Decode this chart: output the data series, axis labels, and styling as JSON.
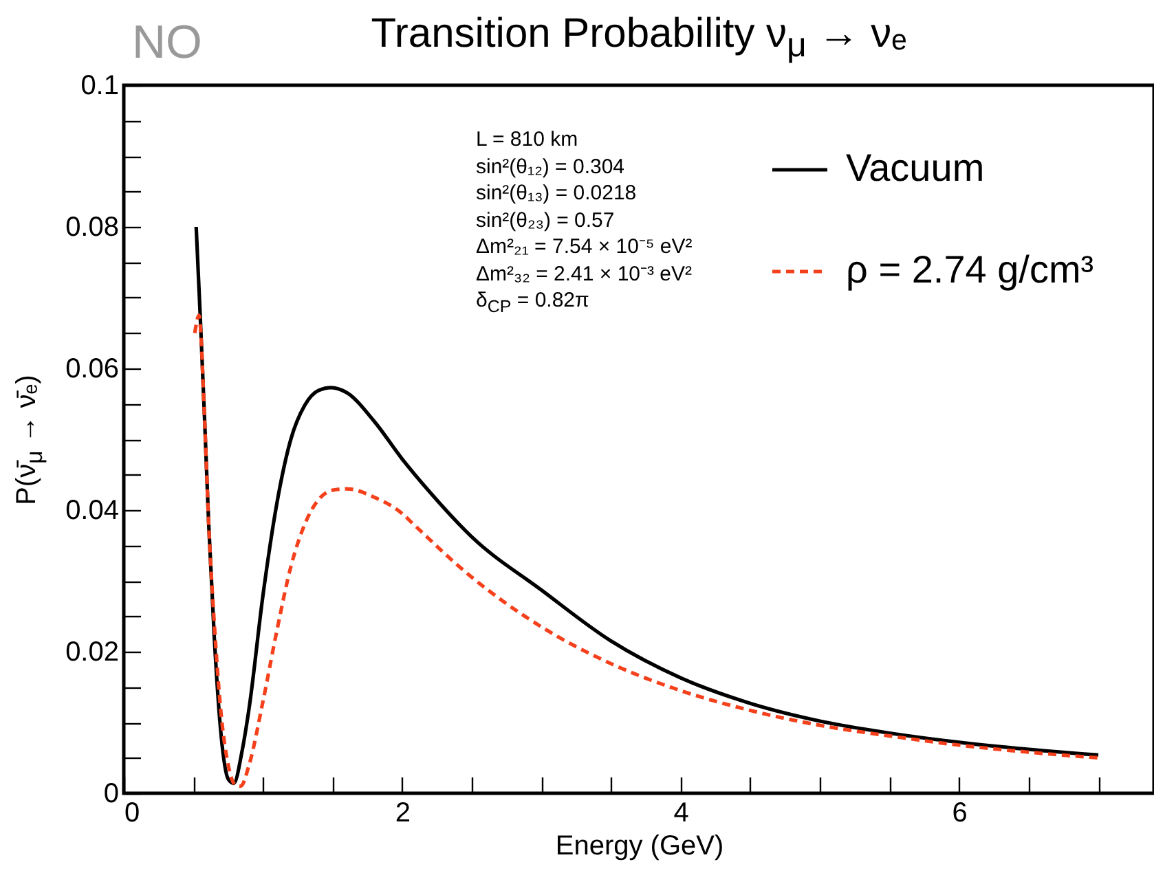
{
  "chart_data": {
    "type": "line",
    "title": "Transition Probability ν$_{μ}$ → νₑ",
    "xlabel": "Energy (GeV)",
    "ylabel": "P(ν̄$_{μ}$ → ν̄ₑ)",
    "annotations": [
      "NO",
      "L = 810 km",
      "sin²(θ₁₂) = 0.304",
      "sin²(θ₁₃) = 0.0218",
      "sin²(θ₂₃) = 0.57",
      "Δm²₂₁ = 7.54 × 10⁻⁵ eV²",
      "Δm²₃₂ = 2.41 × 10⁻³ eV²",
      "δ$_{CP}$ = 0.82π"
    ],
    "xlim": [
      0,
      7.4
    ],
    "ylim": [
      0,
      0.1
    ],
    "xticks": [
      0,
      {
        "value": 0.5,
        "label": null
      },
      {
        "value": 1,
        "label": null
      },
      {
        "value": 1.5,
        "label": null
      },
      2,
      {
        "value": 2.5,
        "label": null
      },
      {
        "value": 3,
        "label": null
      },
      {
        "value": 3.5,
        "label": null
      },
      4,
      {
        "value": 4.5,
        "label": null
      },
      {
        "value": 5,
        "label": null
      },
      {
        "value": 5.5,
        "label": null
      },
      6,
      {
        "value": 6.5,
        "label": null
      },
      {
        "value": 7,
        "label": null
      }
    ],
    "yticks": [
      0,
      {
        "value": 0.005,
        "label": null
      },
      {
        "value": 0.01,
        "label": null
      },
      {
        "value": 0.015,
        "label": null
      },
      0.02,
      {
        "value": 0.025,
        "label": null
      },
      {
        "value": 0.03,
        "label": null
      },
      {
        "value": 0.035,
        "label": null
      },
      0.04,
      {
        "value": 0.045,
        "label": null
      },
      {
        "value": 0.05,
        "label": null
      },
      {
        "value": 0.055,
        "label": null
      },
      0.06,
      {
        "value": 0.065,
        "label": null
      },
      {
        "value": 0.07,
        "label": null
      },
      {
        "value": 0.075,
        "label": null
      },
      0.08,
      {
        "value": 0.085,
        "label": null
      },
      {
        "value": 0.09,
        "label": null
      },
      {
        "value": 0.095,
        "label": null
      },
      0.1
    ],
    "grid": false,
    "legend": "top right",
    "marker": "none",
    "series": [
      {
        "name": "Vacuum",
        "color": "#000000",
        "line_style": "solid",
        "x": [
          0.52,
          0.55,
          0.58,
          0.61,
          0.65,
          0.7,
          0.75,
          0.79,
          0.85,
          0.9,
          1.0,
          1.1,
          1.2,
          1.3,
          1.4,
          1.49,
          1.6,
          1.8,
          2.0,
          2.2,
          2.5,
          3.0,
          3.5,
          4.0,
          4.5,
          5.0,
          5.5,
          6.0,
          6.5,
          7.0
        ],
        "values": [
          0.08,
          0.067,
          0.053,
          0.038,
          0.022,
          0.008,
          0.002,
          0.0014,
          0.006,
          0.012,
          0.028,
          0.041,
          0.05,
          0.0548,
          0.0569,
          0.0573,
          0.0566,
          0.0525,
          0.0472,
          0.0425,
          0.0362,
          0.0287,
          0.0215,
          0.0163,
          0.0127,
          0.0102,
          0.0085,
          0.0072,
          0.0062,
          0.0054
        ]
      },
      {
        "name": "ρ = 2.74 g/cm³",
        "color": "#f5401c",
        "line_style": "dashed",
        "x": [
          0.51,
          0.54,
          0.58,
          0.61,
          0.65,
          0.7,
          0.75,
          0.8,
          0.84,
          0.9,
          1.0,
          1.1,
          1.2,
          1.3,
          1.4,
          1.5,
          1.6,
          1.8,
          2.0,
          2.07,
          2.5,
          3.0,
          3.5,
          4.0,
          4.5,
          5.0,
          5.5,
          6.0,
          6.5,
          7.0
        ],
        "values": [
          0.065,
          0.0675,
          0.053,
          0.038,
          0.024,
          0.011,
          0.004,
          0.0012,
          0.001,
          0.004,
          0.013,
          0.023,
          0.032,
          0.038,
          0.0415,
          0.0428,
          0.043,
          0.0418,
          0.0395,
          0.0382,
          0.0305,
          0.0235,
          0.0183,
          0.0145,
          0.0117,
          0.0096,
          0.0081,
          0.0068,
          0.0058,
          0.005
        ]
      }
    ]
  }
}
